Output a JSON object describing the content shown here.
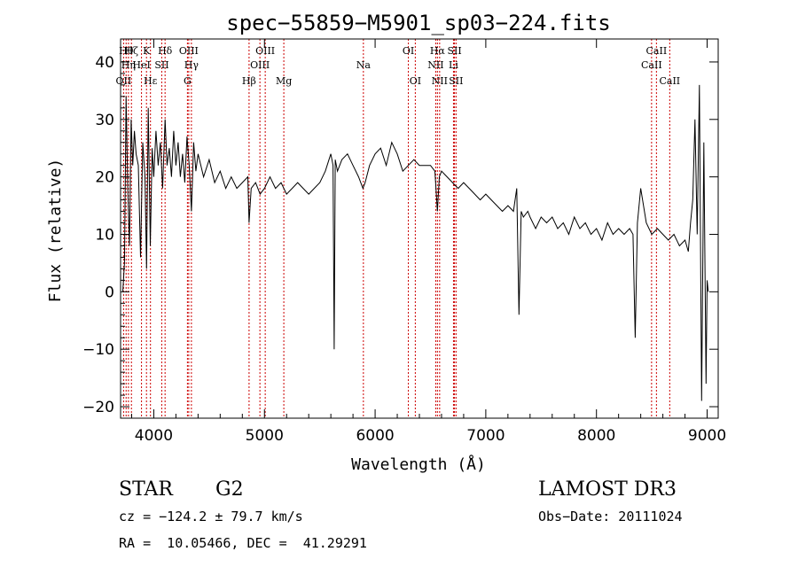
{
  "chart_data": {
    "type": "line",
    "title": "spec−55859−M5901_sp03−224.fits",
    "xlabel": "Wavelength (Å)",
    "ylabel": "Flux (relative)",
    "xlim": [
      3700,
      9100
    ],
    "ylim": [
      -22,
      44
    ],
    "xticks": [
      4000,
      5000,
      6000,
      7000,
      8000,
      9000
    ],
    "xtick_labels": [
      "4000",
      "5000",
      "6000",
      "7000",
      "8000",
      "9000"
    ],
    "yticks": [
      -20,
      -10,
      0,
      10,
      20,
      30,
      40
    ],
    "ytick_labels": [
      "−20",
      "−10",
      "0",
      "10",
      "20",
      "30",
      "40"
    ],
    "series": [
      {
        "name": "spectrum",
        "x": [
          3720,
          3735,
          3750,
          3765,
          3780,
          3795,
          3810,
          3825,
          3840,
          3860,
          3880,
          3900,
          3920,
          3935,
          3950,
          3968,
          3985,
          4000,
          4020,
          4040,
          4060,
          4080,
          4102,
          4120,
          4140,
          4160,
          4180,
          4200,
          4220,
          4240,
          4260,
          4280,
          4300,
          4320,
          4340,
          4360,
          4380,
          4400,
          4450,
          4500,
          4550,
          4600,
          4650,
          4700,
          4750,
          4800,
          4850,
          4861,
          4880,
          4920,
          4960,
          5000,
          5050,
          5100,
          5150,
          5200,
          5250,
          5300,
          5350,
          5400,
          5450,
          5500,
          5550,
          5600,
          5620,
          5630,
          5640,
          5660,
          5700,
          5750,
          5800,
          5850,
          5890,
          5910,
          5950,
          6000,
          6050,
          6100,
          6150,
          6200,
          6250,
          6300,
          6350,
          6400,
          6450,
          6500,
          6540,
          6563,
          6580,
          6600,
          6650,
          6700,
          6750,
          6800,
          6850,
          6900,
          6950,
          7000,
          7050,
          7100,
          7150,
          7200,
          7250,
          7280,
          7300,
          7320,
          7340,
          7380,
          7400,
          7450,
          7500,
          7550,
          7600,
          7650,
          7700,
          7750,
          7800,
          7850,
          7900,
          7950,
          8000,
          8050,
          8100,
          8150,
          8200,
          8250,
          8300,
          8330,
          8350,
          8370,
          8400,
          8450,
          8500,
          8550,
          8600,
          8650,
          8700,
          8750,
          8800,
          8830,
          8850,
          8870,
          8890,
          8910,
          8930,
          8950,
          8970,
          8990,
          9000,
          9010
        ],
        "values": [
          0,
          5,
          34,
          18,
          8,
          30,
          22,
          28,
          24,
          22,
          6,
          26,
          20,
          4,
          32,
          8,
          25,
          20,
          28,
          22,
          26,
          18,
          30,
          22,
          25,
          20,
          28,
          22,
          26,
          20,
          24,
          19,
          27,
          22,
          14,
          26,
          21,
          24,
          20,
          23,
          19,
          21,
          18,
          20,
          18,
          19,
          20,
          12,
          18,
          19,
          17,
          18,
          20,
          18,
          19,
          17,
          18,
          19,
          18,
          17,
          18,
          19,
          21,
          24,
          22,
          -10,
          23,
          21,
          23,
          24,
          22,
          20,
          18,
          19,
          22,
          24,
          25,
          22,
          26,
          24,
          21,
          22,
          23,
          22,
          22,
          22,
          21,
          14,
          20,
          21,
          20,
          19,
          18,
          19,
          18,
          17,
          16,
          17,
          16,
          15,
          14,
          15,
          14,
          18,
          -4,
          14,
          13,
          14,
          13,
          11,
          13,
          12,
          13,
          11,
          12,
          10,
          13,
          11,
          12,
          10,
          11,
          9,
          12,
          10,
          11,
          10,
          11,
          10,
          -8,
          12,
          18,
          12,
          10,
          11,
          10,
          9,
          10,
          8,
          9,
          7,
          12,
          16,
          30,
          10,
          36,
          -19,
          26,
          -16,
          2,
          0
        ]
      }
    ],
    "lines": [
      {
        "name": "OII",
        "wavelength": 3727,
        "row": 3
      },
      {
        "name": "Hθ",
        "wavelength": 3750,
        "row": 1
      },
      {
        "name": "Hη",
        "wavelength": 3771,
        "row": 2
      },
      {
        "name": "Hζ",
        "wavelength": 3798,
        "row": 1
      },
      {
        "name": "K",
        "wavelength": 3934,
        "row": 1
      },
      {
        "name": "Hε",
        "wavelength": 3970,
        "row": 3
      },
      {
        "name": "HeI",
        "wavelength": 3889,
        "row": 2
      },
      {
        "name": "SII",
        "wavelength": 4072,
        "row": 2
      },
      {
        "name": "Hδ",
        "wavelength": 4102,
        "row": 1
      },
      {
        "name": "OIII",
        "wavelength": 4316,
        "row": 1
      },
      {
        "name": "Hγ",
        "wavelength": 4340,
        "row": 2
      },
      {
        "name": "G",
        "wavelength": 4304,
        "row": 3
      },
      {
        "name": "Hβ",
        "wavelength": 4861,
        "row": 3
      },
      {
        "name": "OIII",
        "wavelength": 4959,
        "row": 2
      },
      {
        "name": "OIII",
        "wavelength": 5007,
        "row": 1
      },
      {
        "name": "Mg",
        "wavelength": 5175,
        "row": 3
      },
      {
        "name": "Na",
        "wavelength": 5894,
        "row": 2
      },
      {
        "name": "OI",
        "wavelength": 6300,
        "row": 1
      },
      {
        "name": "OI",
        "wavelength": 6363,
        "row": 3
      },
      {
        "name": "Hα",
        "wavelength": 6563,
        "row": 1
      },
      {
        "name": "NII",
        "wavelength": 6548,
        "row": 2
      },
      {
        "name": "NII",
        "wavelength": 6583,
        "row": 3
      },
      {
        "name": "SII",
        "wavelength": 6717,
        "row": 1
      },
      {
        "name": "Li",
        "wavelength": 6708,
        "row": 2
      },
      {
        "name": "SII",
        "wavelength": 6731,
        "row": 3
      },
      {
        "name": "CaII",
        "wavelength": 8542,
        "row": 1
      },
      {
        "name": "CaII",
        "wavelength": 8498,
        "row": 2
      },
      {
        "name": "CaII",
        "wavelength": 8662,
        "row": 3
      }
    ],
    "line_color": "#cc0000",
    "data_color": "#000000"
  },
  "info": {
    "class_label": "STAR",
    "subclass_label": "G2",
    "survey": "LAMOST DR3",
    "cz": "cz = −124.2 ± 79.7 km/s",
    "obs_date": "Obs−Date: 20111024",
    "coords": "RA =  10.05466, DEC =  41.29291"
  }
}
